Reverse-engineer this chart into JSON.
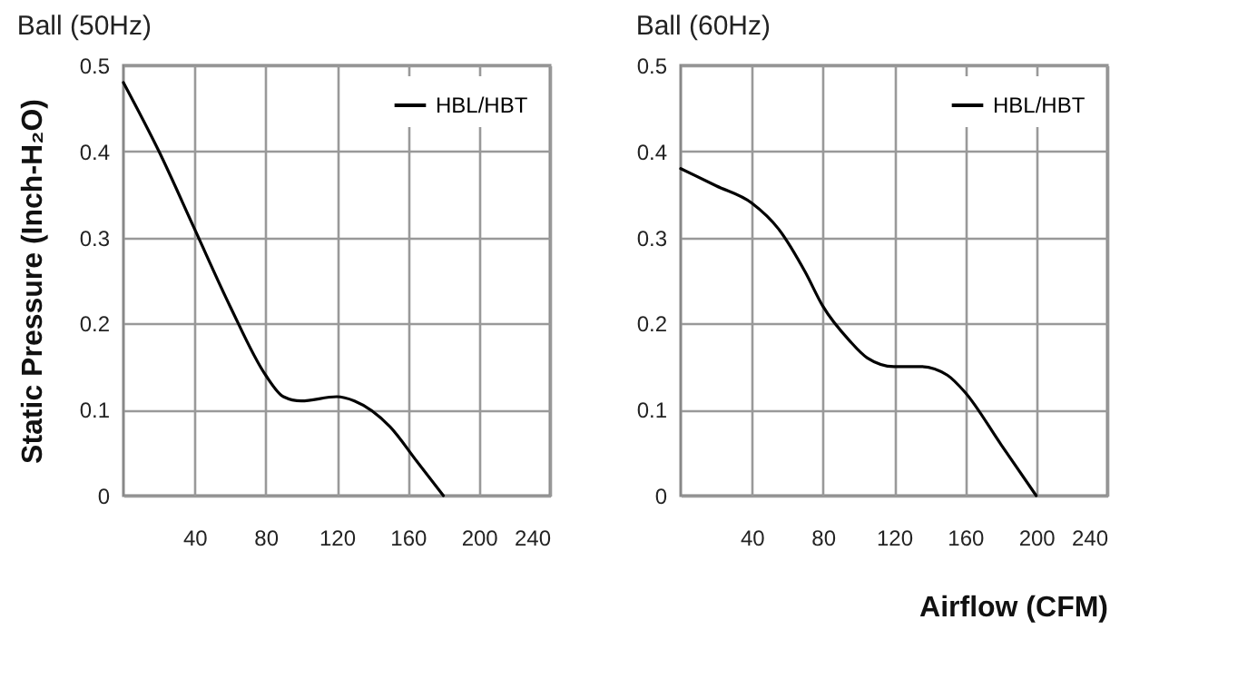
{
  "chart_data": [
    {
      "type": "line",
      "title": "Ball (50Hz)",
      "ylabel": "Static Pressure (Inch-H₂O)",
      "xlim": [
        0,
        240
      ],
      "ylim": [
        0,
        0.5
      ],
      "xticks": [
        40,
        80,
        120,
        160,
        200,
        240
      ],
      "yticks": [
        0,
        0.1,
        0.2,
        0.3,
        0.4,
        0.5
      ],
      "grid": true,
      "legend": "top right",
      "marker": "none",
      "line_style": "solid",
      "series": [
        {
          "name": "HBL/HBT",
          "color": "#000000",
          "x": [
            0,
            20,
            40,
            60,
            80,
            90,
            100,
            120,
            130,
            150,
            165,
            180
          ],
          "values": [
            0.48,
            0.4,
            0.31,
            0.22,
            0.14,
            0.115,
            0.11,
            0.115,
            0.11,
            0.08,
            0.04,
            0
          ]
        }
      ]
    },
    {
      "type": "line",
      "title": "Ball (60Hz)",
      "xlabel": "Airflow (CFM)",
      "xlim": [
        0,
        240
      ],
      "ylim": [
        0,
        0.5
      ],
      "xticks": [
        40,
        80,
        120,
        160,
        200,
        240
      ],
      "yticks": [
        0,
        0.1,
        0.2,
        0.3,
        0.4,
        0.5
      ],
      "grid": true,
      "legend": "top right",
      "marker": "none",
      "line_style": "solid",
      "series": [
        {
          "name": "HBL/HBT",
          "color": "#000000",
          "x": [
            0,
            20,
            40,
            55,
            70,
            80,
            95,
            105,
            120,
            135,
            150,
            160,
            180,
            200
          ],
          "values": [
            0.38,
            0.36,
            0.34,
            0.31,
            0.26,
            0.22,
            0.18,
            0.16,
            0.15,
            0.15,
            0.14,
            0.12,
            0.06,
            0
          ]
        }
      ]
    }
  ]
}
